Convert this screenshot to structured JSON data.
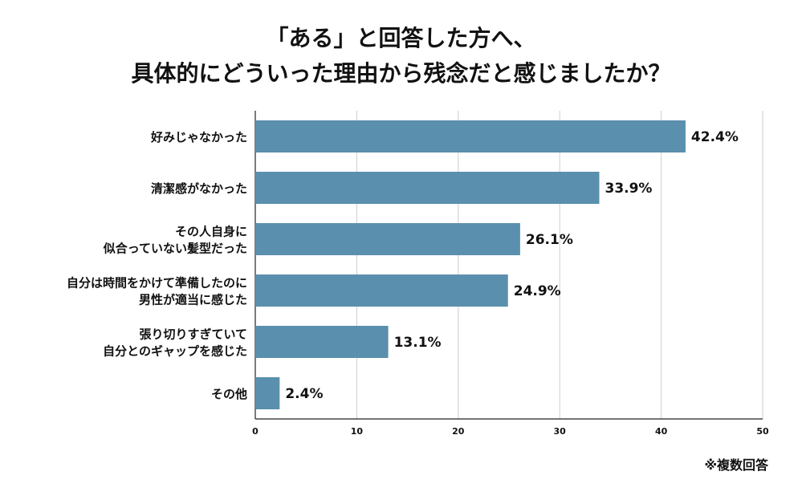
{
  "chart_data": {
    "type": "bar",
    "orientation": "horizontal",
    "title": [
      "「ある」と回答した方へ、",
      "具体的にどういった理由から残念だと感じましたか？"
    ],
    "categories": [
      [
        "好みじゃなかった"
      ],
      [
        "清潔感がなかった"
      ],
      [
        "その人自身に",
        "似合っていない髪型だった"
      ],
      [
        "自分は時間をかけて準備したのに",
        "男性が適当に感じた"
      ],
      [
        "張り切りすぎていて",
        "自分とのギャップを感じた"
      ],
      [
        "その他"
      ]
    ],
    "values": [
      42.4,
      33.9,
      26.1,
      24.9,
      13.1,
      2.4
    ],
    "value_labels": [
      "42.4%",
      "33.9%",
      "26.1%",
      "24.9%",
      "13.1%",
      "2.4%"
    ],
    "xlim": [
      0,
      50
    ],
    "x_ticks": [
      "0",
      "10",
      "20",
      "30",
      "40",
      "50"
    ],
    "grid": "vertical",
    "bar_color": "#5a8fad"
  },
  "note": "※複数回答"
}
